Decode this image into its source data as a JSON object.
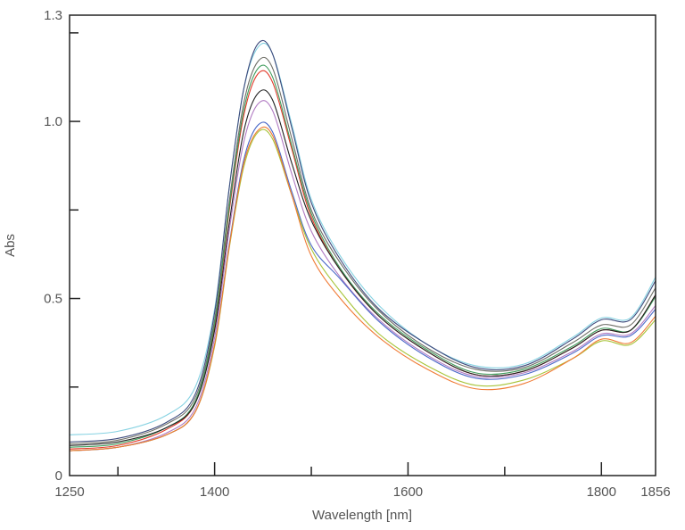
{
  "chart_data": {
    "type": "line",
    "title": "",
    "xlabel": "Wavelength [nm]",
    "ylabel": "Abs",
    "xlim": [
      1250,
      1856
    ],
    "ylim": [
      0,
      1.3
    ],
    "x_ticks_labeled": [
      "1250",
      "1400",
      "1600",
      "1800",
      "1856"
    ],
    "x_tick_values": [
      1250,
      1400,
      1600,
      1800,
      1856
    ],
    "x_minor_ticks": [
      1300,
      1500,
      1700
    ],
    "y_ticks_labeled": [
      "0",
      "0.5",
      "1.0",
      "1.3"
    ],
    "y_tick_values": [
      0,
      0.5,
      1.0,
      1.3
    ],
    "y_minor_ticks": [
      0.25,
      0.75,
      1.25
    ],
    "grid": false,
    "legend": "none",
    "x": [
      1250,
      1300,
      1350,
      1380,
      1400,
      1415,
      1430,
      1445,
      1460,
      1480,
      1500,
      1530,
      1570,
      1620,
      1670,
      1720,
      1770,
      1800,
      1830,
      1856
    ],
    "series": [
      {
        "color": "#86d2e2",
        "values": [
          0.115,
          0.125,
          0.17,
          0.25,
          0.47,
          0.81,
          1.09,
          1.21,
          1.19,
          0.99,
          0.78,
          0.62,
          0.48,
          0.37,
          0.31,
          0.315,
          0.39,
          0.445,
          0.445,
          0.56
        ]
      },
      {
        "color": "#3d4a7c",
        "values": [
          0.095,
          0.105,
          0.15,
          0.23,
          0.46,
          0.81,
          1.09,
          1.22,
          1.19,
          0.98,
          0.77,
          0.61,
          0.47,
          0.37,
          0.305,
          0.31,
          0.385,
          0.44,
          0.44,
          0.55
        ]
      },
      {
        "color": "#6e6e66",
        "values": [
          0.09,
          0.1,
          0.145,
          0.22,
          0.44,
          0.77,
          1.05,
          1.17,
          1.15,
          0.95,
          0.75,
          0.6,
          0.465,
          0.36,
          0.3,
          0.305,
          0.375,
          0.425,
          0.425,
          0.53
        ]
      },
      {
        "color": "#e23a2a",
        "values": [
          0.075,
          0.085,
          0.13,
          0.205,
          0.42,
          0.745,
          1.015,
          1.135,
          1.11,
          0.92,
          0.73,
          0.58,
          0.45,
          0.35,
          0.285,
          0.295,
          0.36,
          0.41,
          0.41,
          0.51
        ]
      },
      {
        "color": "#3f9c5c",
        "values": [
          0.08,
          0.09,
          0.135,
          0.21,
          0.43,
          0.755,
          1.03,
          1.15,
          1.125,
          0.93,
          0.74,
          0.585,
          0.455,
          0.355,
          0.29,
          0.3,
          0.365,
          0.415,
          0.41,
          0.505
        ]
      },
      {
        "color": "#222222",
        "values": [
          0.085,
          0.095,
          0.135,
          0.205,
          0.41,
          0.71,
          0.97,
          1.08,
          1.06,
          0.88,
          0.72,
          0.58,
          0.45,
          0.35,
          0.285,
          0.295,
          0.36,
          0.41,
          0.41,
          0.51
        ]
      },
      {
        "color": "#b07ac2",
        "values": [
          0.07,
          0.08,
          0.12,
          0.19,
          0.39,
          0.69,
          0.94,
          1.05,
          1.03,
          0.85,
          0.69,
          0.56,
          0.44,
          0.34,
          0.28,
          0.29,
          0.35,
          0.4,
          0.4,
          0.48
        ]
      },
      {
        "color": "#4a68c8",
        "values": [
          0.07,
          0.08,
          0.115,
          0.18,
          0.37,
          0.65,
          0.89,
          0.99,
          0.97,
          0.8,
          0.65,
          0.555,
          0.435,
          0.335,
          0.275,
          0.285,
          0.345,
          0.395,
          0.395,
          0.47
        ]
      },
      {
        "color": "#a8c43a",
        "values": [
          0.07,
          0.08,
          0.115,
          0.18,
          0.365,
          0.64,
          0.87,
          0.97,
          0.95,
          0.79,
          0.64,
          0.52,
          0.4,
          0.31,
          0.255,
          0.27,
          0.33,
          0.38,
          0.37,
          0.44
        ]
      },
      {
        "color": "#f07a34",
        "values": [
          0.07,
          0.08,
          0.115,
          0.18,
          0.37,
          0.645,
          0.88,
          0.975,
          0.96,
          0.79,
          0.62,
          0.5,
          0.39,
          0.3,
          0.245,
          0.26,
          0.33,
          0.385,
          0.375,
          0.45
        ]
      }
    ]
  }
}
